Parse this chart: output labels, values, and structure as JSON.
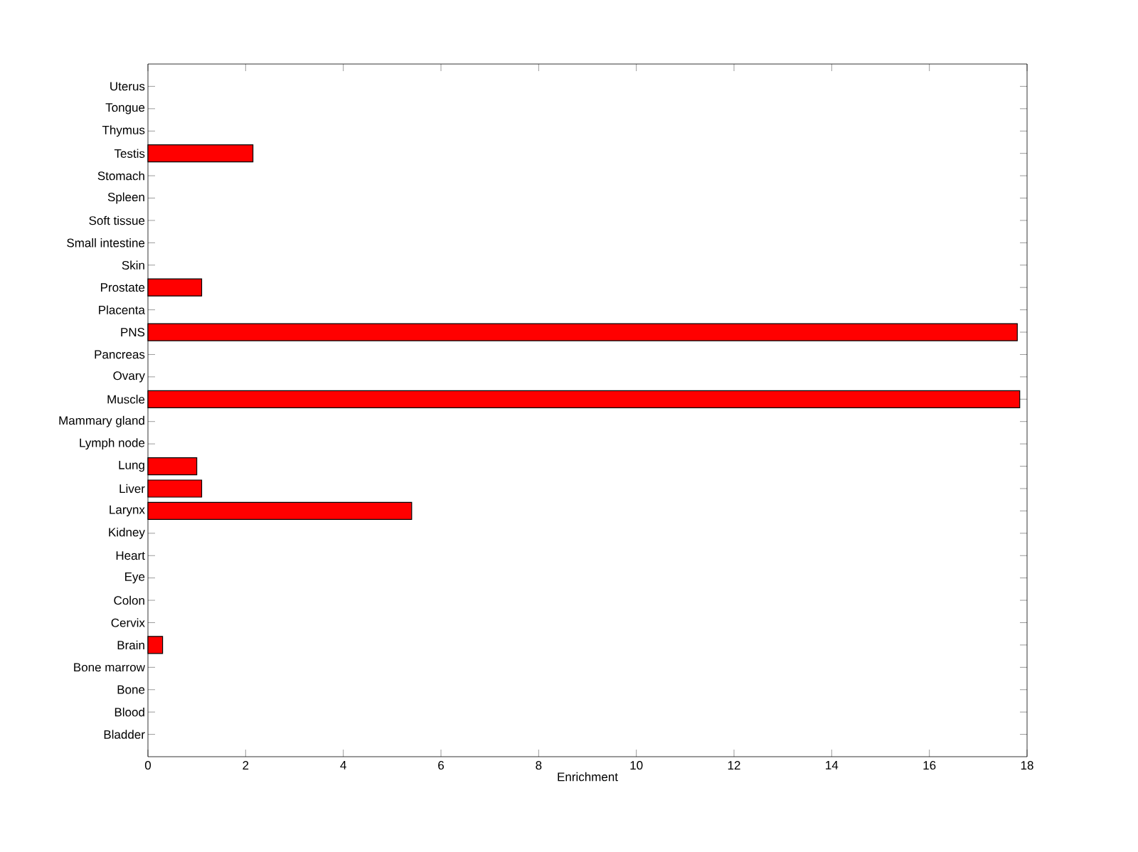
{
  "chart_data": {
    "type": "bar",
    "orientation": "horizontal",
    "xlabel": "Enrichment",
    "categories": [
      "Uterus",
      "Tongue",
      "Thymus",
      "Testis",
      "Stomach",
      "Spleen",
      "Soft tissue",
      "Small intestine",
      "Skin",
      "Prostate",
      "Placenta",
      "PNS",
      "Pancreas",
      "Ovary",
      "Muscle",
      "Mammary gland",
      "Lymph node",
      "Lung",
      "Liver",
      "Larynx",
      "Kidney",
      "Heart",
      "Eye",
      "Colon",
      "Cervix",
      "Brain",
      "Bone marrow",
      "Bone",
      "Blood",
      "Bladder"
    ],
    "values": [
      0,
      0,
      0,
      2.15,
      0,
      0,
      0,
      0,
      0,
      1.1,
      0,
      17.8,
      0,
      0,
      17.85,
      0,
      0,
      1.0,
      1.1,
      5.4,
      0,
      0,
      0,
      0,
      0,
      0.3,
      0,
      0,
      0,
      0
    ],
    "color": "#ff0000",
    "xlim": [
      0,
      18
    ],
    "xticks": [
      0,
      2,
      4,
      6,
      8,
      10,
      12,
      14,
      16,
      18
    ]
  }
}
